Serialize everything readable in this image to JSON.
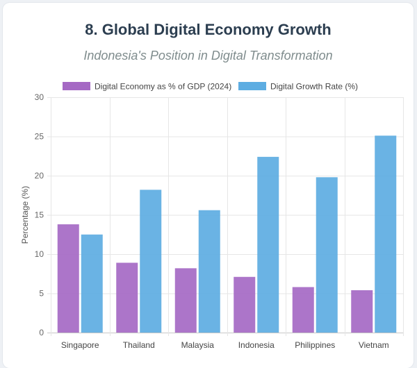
{
  "header": {
    "title": "8. Global Digital Economy Growth",
    "subtitle": "Indonesia's Position in Digital Transformation"
  },
  "chart_data": {
    "type": "bar",
    "categories": [
      "Singapore",
      "Thailand",
      "Malaysia",
      "Indonesia",
      "Philippines",
      "Vietnam"
    ],
    "series": [
      {
        "name": "Digital Economy as % of GDP (2024)",
        "values": [
          13.8,
          8.9,
          8.2,
          7.1,
          5.8,
          5.4
        ],
        "color": "#a569c4"
      },
      {
        "name": "Digital Growth Rate (%)",
        "values": [
          12.5,
          18.2,
          15.6,
          22.4,
          19.8,
          25.1
        ],
        "color": "#5dade2"
      }
    ],
    "ylabel": "Percentage (%)",
    "xlabel": "",
    "ylim": [
      0,
      30
    ],
    "yticks": [
      0,
      5,
      10,
      15,
      20,
      25,
      30
    ],
    "grid": true,
    "legend": "top-center"
  }
}
